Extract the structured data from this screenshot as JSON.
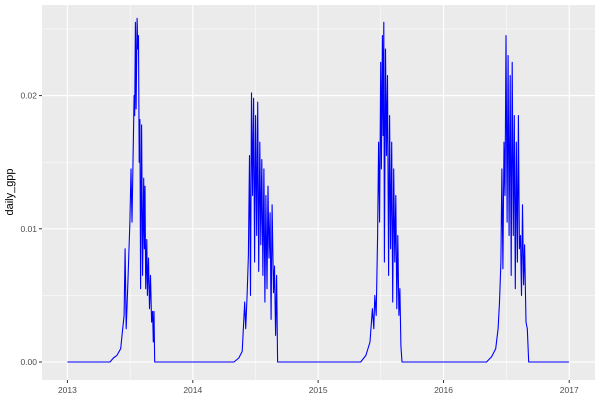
{
  "chart_data": {
    "type": "line",
    "title": "",
    "xlabel": "",
    "ylabel": "daily_gpp",
    "xlim": [
      "2012-10-19",
      "2017-03-17"
    ],
    "ylim": [
      -0.00135,
      0.0268
    ],
    "x_ticks": [
      "2013",
      "2014",
      "2015",
      "2016",
      "2017"
    ],
    "y_ticks": [
      {
        "value": 0,
        "label": "0.00"
      },
      {
        "value": 0.01,
        "label": "0.01"
      },
      {
        "value": 0.02,
        "label": "0.02"
      }
    ],
    "grid": true,
    "line_color": "#0000ff",
    "panel_background": "#ebebeb",
    "series": [
      {
        "points": [
          [
            "2013-01-01",
            0
          ],
          [
            "2013-05-05",
            0
          ],
          [
            "2013-05-15",
            0.0003
          ],
          [
            "2013-05-25",
            0.0005
          ],
          [
            "2013-06-05",
            0.001
          ],
          [
            "2013-06-09",
            0.002
          ],
          [
            "2013-06-15",
            0.0035
          ],
          [
            "2013-06-18",
            0.0085
          ],
          [
            "2013-06-21",
            0.0025
          ],
          [
            "2013-06-26",
            0.006
          ],
          [
            "2013-07-02",
            0.0105
          ],
          [
            "2013-07-05",
            0.0145
          ],
          [
            "2013-07-08",
            0.0105
          ],
          [
            "2013-07-11",
            0.015
          ],
          [
            "2013-07-14",
            0.02
          ],
          [
            "2013-07-16",
            0.0185
          ],
          [
            "2013-07-18",
            0.0255
          ],
          [
            "2013-07-20",
            0.019
          ],
          [
            "2013-07-23",
            0.0258
          ],
          [
            "2013-07-25",
            0.0235
          ],
          [
            "2013-07-27",
            0.0245
          ],
          [
            "2013-07-29",
            0.015
          ],
          [
            "2013-07-31",
            0.0182
          ],
          [
            "2013-08-02",
            0.0055
          ],
          [
            "2013-08-05",
            0.0178
          ],
          [
            "2013-08-08",
            0.0065
          ],
          [
            "2013-08-11",
            0.0138
          ],
          [
            "2013-08-13",
            0.0085
          ],
          [
            "2013-08-15",
            0.0132
          ],
          [
            "2013-08-17",
            0.0055
          ],
          [
            "2013-08-20",
            0.0092
          ],
          [
            "2013-08-22",
            0.005
          ],
          [
            "2013-08-25",
            0.0078
          ],
          [
            "2013-08-28",
            0.004
          ],
          [
            "2013-08-31",
            0.0065
          ],
          [
            "2013-09-03",
            0.003
          ],
          [
            "2013-09-06",
            0.0038
          ],
          [
            "2013-09-08",
            0.0015
          ],
          [
            "2013-09-10",
            0.0038
          ],
          [
            "2013-09-12",
            0
          ],
          [
            "2014-05-01",
            0
          ],
          [
            "2014-05-15",
            0.0003
          ],
          [
            "2014-05-25",
            0.0008
          ],
          [
            "2014-06-01",
            0.0045
          ],
          [
            "2014-06-04",
            0.0025
          ],
          [
            "2014-06-08",
            0.005
          ],
          [
            "2014-06-12",
            0.008
          ],
          [
            "2014-06-15",
            0.0155
          ],
          [
            "2014-06-18",
            0.005
          ],
          [
            "2014-06-21",
            0.0202
          ],
          [
            "2014-06-24",
            0.0125
          ],
          [
            "2014-06-27",
            0.0198
          ],
          [
            "2014-06-30",
            0.0075
          ],
          [
            "2014-07-03",
            0.0185
          ],
          [
            "2014-07-06",
            0.0095
          ],
          [
            "2014-07-09",
            0.0195
          ],
          [
            "2014-07-12",
            0.0068
          ],
          [
            "2014-07-15",
            0.0165
          ],
          [
            "2014-07-18",
            0.0088
          ],
          [
            "2014-07-21",
            0.0152
          ],
          [
            "2014-07-24",
            0.0065
          ],
          [
            "2014-07-27",
            0.0145
          ],
          [
            "2014-07-30",
            0.0045
          ],
          [
            "2014-08-02",
            0.0125
          ],
          [
            "2014-08-05",
            0.0055
          ],
          [
            "2014-08-08",
            0.0132
          ],
          [
            "2014-08-11",
            0.0078
          ],
          [
            "2014-08-14",
            0.0112
          ],
          [
            "2014-08-17",
            0.0032
          ],
          [
            "2014-08-20",
            0.0118
          ],
          [
            "2014-08-24",
            0.0052
          ],
          [
            "2014-08-27",
            0.0072
          ],
          [
            "2014-08-30",
            0.002
          ],
          [
            "2014-09-02",
            0.0065
          ],
          [
            "2014-09-05",
            0
          ],
          [
            "2015-05-05",
            0
          ],
          [
            "2015-05-20",
            0.0005
          ],
          [
            "2015-06-01",
            0.0015
          ],
          [
            "2015-06-08",
            0.004
          ],
          [
            "2015-06-12",
            0.0025
          ],
          [
            "2015-06-15",
            0.005
          ],
          [
            "2015-06-19",
            0.0035
          ],
          [
            "2015-06-23",
            0.0095
          ],
          [
            "2015-06-26",
            0.0165
          ],
          [
            "2015-06-29",
            0.0105
          ],
          [
            "2015-07-02",
            0.0225
          ],
          [
            "2015-07-04",
            0.0145
          ],
          [
            "2015-07-07",
            0.0245
          ],
          [
            "2015-07-09",
            0.017
          ],
          [
            "2015-07-11",
            0.0255
          ],
          [
            "2015-07-13",
            0.0075
          ],
          [
            "2015-07-16",
            0.0235
          ],
          [
            "2015-07-19",
            0.0155
          ],
          [
            "2015-07-22",
            0.0215
          ],
          [
            "2015-07-25",
            0.0065
          ],
          [
            "2015-07-28",
            0.0185
          ],
          [
            "2015-07-31",
            0.0085
          ],
          [
            "2015-08-03",
            0.0165
          ],
          [
            "2015-08-06",
            0.0045
          ],
          [
            "2015-08-09",
            0.0145
          ],
          [
            "2015-08-12",
            0.0075
          ],
          [
            "2015-08-15",
            0.0125
          ],
          [
            "2015-08-18",
            0.004
          ],
          [
            "2015-08-21",
            0.0095
          ],
          [
            "2015-08-24",
            0.0035
          ],
          [
            "2015-08-27",
            0.0055
          ],
          [
            "2015-08-30",
            0.0012
          ],
          [
            "2015-09-02",
            0
          ],
          [
            "2016-05-05",
            0
          ],
          [
            "2016-05-20",
            0.0004
          ],
          [
            "2016-06-01",
            0.001
          ],
          [
            "2016-06-08",
            0.0025
          ],
          [
            "2016-06-12",
            0.0045
          ],
          [
            "2016-06-16",
            0.0075
          ],
          [
            "2016-06-19",
            0.0145
          ],
          [
            "2016-06-22",
            0.007
          ],
          [
            "2016-06-25",
            0.0165
          ],
          [
            "2016-06-28",
            0.0125
          ],
          [
            "2016-07-01",
            0.0245
          ],
          [
            "2016-07-04",
            0.0105
          ],
          [
            "2016-07-07",
            0.023
          ],
          [
            "2016-07-10",
            0.0095
          ],
          [
            "2016-07-13",
            0.0215
          ],
          [
            "2016-07-16",
            0.0065
          ],
          [
            "2016-07-19",
            0.0225
          ],
          [
            "2016-07-22",
            0.0095
          ],
          [
            "2016-07-25",
            0.0185
          ],
          [
            "2016-07-28",
            0.0055
          ],
          [
            "2016-07-31",
            0.0165
          ],
          [
            "2016-08-03",
            0.0075
          ],
          [
            "2016-08-06",
            0.0185
          ],
          [
            "2016-08-09",
            0.0085
          ],
          [
            "2016-08-12",
            0.0095
          ],
          [
            "2016-08-15",
            0.005
          ],
          [
            "2016-08-18",
            0.0118
          ],
          [
            "2016-08-21",
            0.0058
          ],
          [
            "2016-08-24",
            0.0088
          ],
          [
            "2016-08-28",
            0.003
          ],
          [
            "2016-09-01",
            0.0025
          ],
          [
            "2016-09-05",
            0
          ],
          [
            "2016-12-31",
            0
          ]
        ]
      }
    ]
  }
}
